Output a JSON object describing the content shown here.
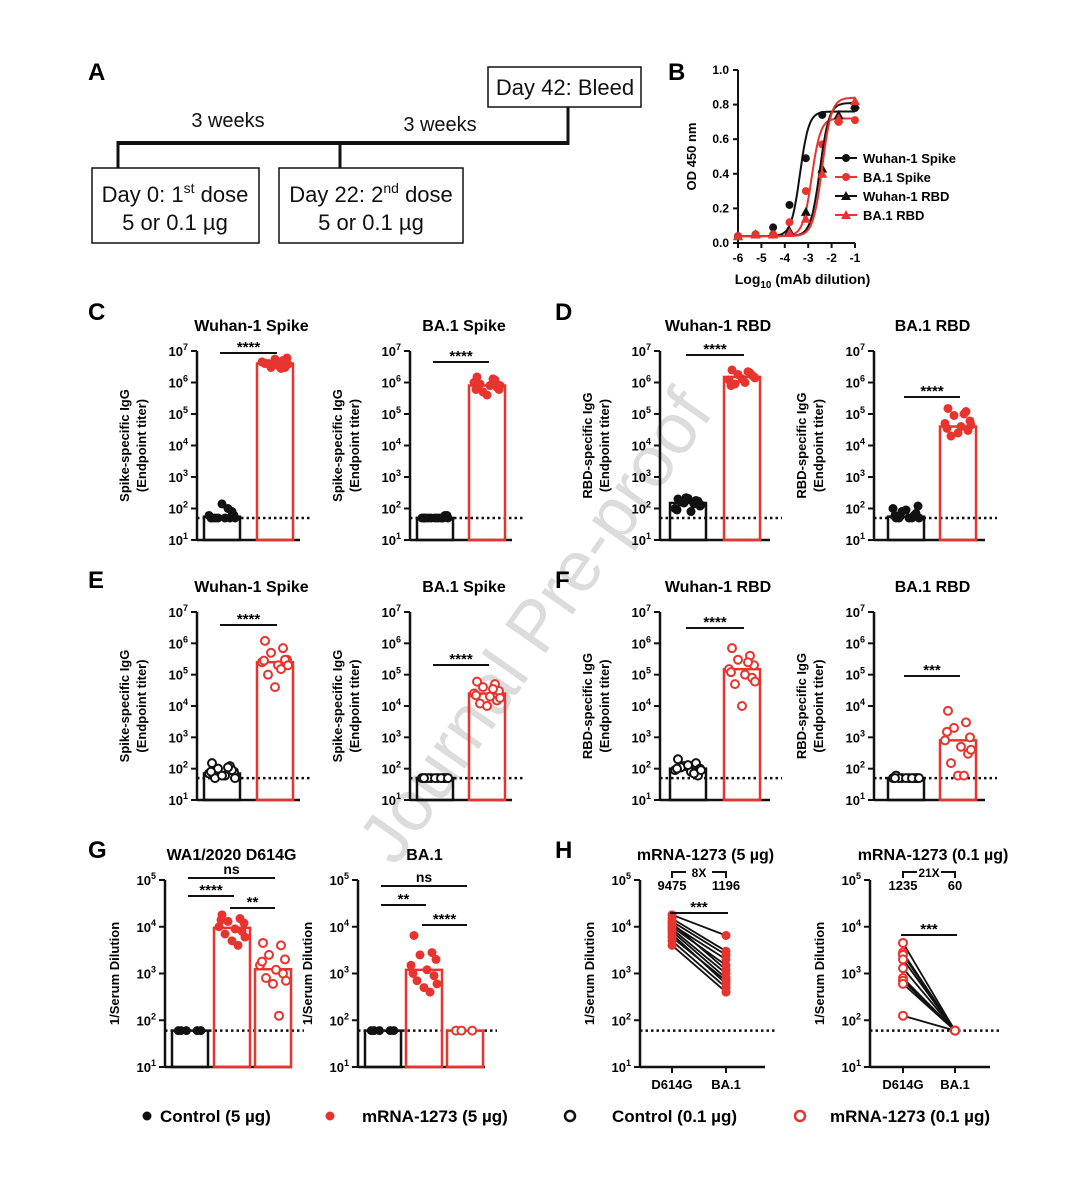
{
  "colors": {
    "black": "#111111",
    "red": "#e8342e",
    "watermark": "#d9d9d9"
  },
  "watermark": "Journal Pre-proof",
  "panel_labels": [
    "A",
    "B",
    "C",
    "D",
    "E",
    "F",
    "G",
    "H"
  ],
  "panel_a": {
    "bleed": "Day 42: Bleed",
    "interval_1": "3 weeks",
    "interval_2": "3 weeks",
    "dose1_line1": "Day 0: 1",
    "dose1_sup": "st",
    "dose1_line1_end": " dose",
    "dose1_line2": "5 or 0.1 µg",
    "dose2_line1": "Day 22: 2",
    "dose2_sup": "nd",
    "dose2_line1_end": " dose",
    "dose2_line2": "5 or 0.1 µg"
  },
  "legend": [
    {
      "label": "Control (5 µg)",
      "symbol": "filled",
      "color": "#111111"
    },
    {
      "label": "mRNA-1273 (5 µg)",
      "symbol": "filled",
      "color": "#e8342e"
    },
    {
      "label": "Control (0.1 µg)",
      "symbol": "open",
      "color": "#111111"
    },
    {
      "label": "mRNA-1273 (0.1 µg)",
      "symbol": "open",
      "color": "#e8342e"
    }
  ],
  "chart_data": [
    {
      "panel": "B",
      "type": "line",
      "xlabel": "Log10 (mAb dilution)",
      "ylabel": "OD 450 nm",
      "xlim": [
        -6,
        -1
      ],
      "ylim": [
        0,
        1.0
      ],
      "xticks": [
        -6,
        -5,
        -4,
        -3,
        -2,
        -1
      ],
      "yticks": [
        0.0,
        0.2,
        0.4,
        0.6,
        0.8,
        1.0
      ],
      "x": [
        -6,
        -5.25,
        -4.5,
        -3.8,
        -3.1,
        -2.4,
        -1.7,
        -1
      ],
      "series": [
        {
          "name": "Wuhan-1 Spike",
          "color": "#111111",
          "marker": "circle",
          "values": [
            0.04,
            0.05,
            0.09,
            0.22,
            0.49,
            0.74,
            0.72,
            0.78
          ],
          "fit": {
            "bottom": 0.04,
            "top": 0.76,
            "ec50": -3.35,
            "hill": 2.3
          }
        },
        {
          "name": "BA.1 Spike",
          "color": "#e8342e",
          "marker": "circle",
          "values": [
            0.04,
            0.05,
            0.05,
            0.12,
            0.3,
            0.57,
            0.7,
            0.71
          ],
          "fit": {
            "bottom": 0.04,
            "top": 0.72,
            "ec50": -2.85,
            "hill": 2.3
          }
        },
        {
          "name": "Wuhan-1 RBD",
          "color": "#111111",
          "marker": "triangle",
          "values": [
            0.04,
            0.05,
            0.05,
            0.07,
            0.18,
            0.43,
            0.74,
            0.8
          ],
          "fit": {
            "bottom": 0.04,
            "top": 0.81,
            "ec50": -2.5,
            "hill": 2.2
          }
        },
        {
          "name": "BA.1 RBD",
          "color": "#e8342e",
          "marker": "triangle",
          "values": [
            0.04,
            0.05,
            0.05,
            0.06,
            0.14,
            0.4,
            0.72,
            0.82
          ],
          "fit": {
            "bottom": 0.04,
            "top": 0.84,
            "ec50": -2.4,
            "hill": 2.2
          }
        }
      ],
      "legend_position": "right"
    },
    {
      "panel": "C",
      "type": "bar",
      "title": "Wuhan-1 Spike",
      "ylabel": [
        "Spike-specific IgG",
        "(Endpoint titer)"
      ],
      "ylim": [
        10,
        10000000
      ],
      "limit": 50,
      "groups": [
        {
          "name": "Control (5 µg)",
          "style": "black",
          "bar": 55,
          "points": [
            50,
            50,
            50,
            60,
            60,
            50,
            80,
            50,
            140,
            100,
            50,
            50
          ]
        },
        {
          "name": "mRNA-1273 (5 µg)",
          "style": "red",
          "bar": 4000000,
          "points": [
            4000000,
            5000000,
            3000000,
            6000000,
            4500000,
            3500000,
            3000000,
            4000000,
            5500000,
            2800000,
            4200000,
            3800000
          ]
        }
      ],
      "sig": [
        {
          "from": 0,
          "to": 1,
          "label": "****"
        }
      ]
    },
    {
      "panel": "C",
      "type": "bar",
      "title": "BA.1 Spike",
      "ylabel": [
        "Spike-specific IgG",
        "(Endpoint titer)"
      ],
      "ylim": [
        10,
        10000000
      ],
      "limit": 50,
      "groups": [
        {
          "name": "Control (5 µg)",
          "style": "black",
          "bar": 50,
          "points": [
            50,
            50,
            50,
            60,
            50,
            50,
            60,
            50,
            50,
            50,
            50,
            50
          ]
        },
        {
          "name": "mRNA-1273 (5 µg)",
          "style": "red",
          "bar": 800000,
          "points": [
            1500000,
            1200000,
            500000,
            600000,
            1000000,
            800000,
            700000,
            900000,
            400000,
            1300000,
            600000,
            800000
          ]
        }
      ],
      "sig": [
        {
          "from": 0,
          "to": 1,
          "label": "****"
        }
      ]
    },
    {
      "panel": "D",
      "type": "bar",
      "title": "Wuhan-1 RBD",
      "ylabel": [
        "RBD-specific IgG",
        "(Endpoint titer)"
      ],
      "ylim": [
        10,
        10000000
      ],
      "limit": 50,
      "groups": [
        {
          "name": "Control (5 µg)",
          "style": "black",
          "bar": 150,
          "points": [
            200,
            180,
            150,
            120,
            100,
            80,
            170,
            160,
            210,
            140,
            90,
            130,
            220
          ]
        },
        {
          "name": "mRNA-1273 (5 µg)",
          "style": "red",
          "bar": 1500000,
          "points": [
            2500000,
            2000000,
            1800000,
            1500000,
            1200000,
            1000000,
            1700000,
            900000,
            1300000,
            2200000,
            800000,
            1400000
          ]
        }
      ],
      "sig": [
        {
          "from": 0,
          "to": 1,
          "label": "****"
        }
      ]
    },
    {
      "panel": "D",
      "type": "bar",
      "title": "BA.1 RBD",
      "ylabel": [
        "RBD-specific IgG",
        "(Endpoint titer)"
      ],
      "ylim": [
        10,
        10000000
      ],
      "limit": 50,
      "groups": [
        {
          "name": "Control (5 µg)",
          "style": "black",
          "bar": 55,
          "points": [
            50,
            60,
            80,
            120,
            100,
            50,
            70,
            50,
            90,
            50,
            60,
            50
          ]
        },
        {
          "name": "mRNA-1273 (5 µg)",
          "style": "red",
          "bar": 40000,
          "points": [
            150000,
            120000,
            90000,
            60000,
            50000,
            40000,
            30000,
            20000,
            25000,
            100000,
            35000,
            45000
          ]
        }
      ],
      "sig": [
        {
          "from": 0,
          "to": 1,
          "label": "****"
        }
      ]
    },
    {
      "panel": "E",
      "type": "bar",
      "title": "Wuhan-1 Spike",
      "ylabel": [
        "Spike-specific IgG",
        "(Endpoint titer)"
      ],
      "ylim": [
        10,
        10000000
      ],
      "limit": 50,
      "groups": [
        {
          "name": "Control (0.1 µg)",
          "style": "black-open",
          "bar": 70,
          "points": [
            150,
            120,
            100,
            80,
            70,
            60,
            90,
            50,
            60,
            110,
            80,
            50
          ]
        },
        {
          "name": "mRNA-1273 (0.1 µg)",
          "style": "red-open",
          "bar": 250000,
          "points": [
            1200000,
            700000,
            500000,
            300000,
            250000,
            200000,
            300000,
            100000,
            40000,
            150000,
            280000,
            200000
          ]
        }
      ],
      "sig": [
        {
          "from": 0,
          "to": 1,
          "label": "****"
        }
      ]
    },
    {
      "panel": "E",
      "type": "bar",
      "title": "BA.1 Spike",
      "ylabel": [
        "Spike-specific IgG",
        "(Endpoint titer)"
      ],
      "ylim": [
        10,
        10000000
      ],
      "limit": 50,
      "groups": [
        {
          "name": "Control (0.1 µg)",
          "style": "black-open",
          "bar": 50,
          "points": [
            50,
            50,
            50,
            50,
            50,
            50,
            50,
            50,
            50,
            50,
            50,
            50
          ]
        },
        {
          "name": "mRNA-1273 (0.1 µg)",
          "style": "red-open",
          "bar": 25000,
          "points": [
            60000,
            50000,
            40000,
            30000,
            25000,
            20000,
            15000,
            12000,
            10000,
            35000,
            22000,
            18000
          ]
        }
      ],
      "sig": [
        {
          "from": 0,
          "to": 1,
          "label": "****"
        }
      ]
    },
    {
      "panel": "F",
      "type": "bar",
      "title": "Wuhan-1 RBD",
      "ylabel": [
        "RBD-specific IgG",
        "(Endpoint titer)"
      ],
      "ylim": [
        10,
        10000000
      ],
      "limit": 50,
      "groups": [
        {
          "name": "Control (0.1 µg)",
          "style": "black-open",
          "bar": 100,
          "points": [
            200,
            150,
            120,
            100,
            90,
            80,
            60,
            110,
            130,
            70,
            100,
            90
          ]
        },
        {
          "name": "mRNA-1273 (0.1 µg)",
          "style": "red-open",
          "bar": 150000,
          "points": [
            700000,
            400000,
            300000,
            200000,
            150000,
            100000,
            80000,
            50000,
            10000,
            250000,
            120000,
            60000
          ]
        }
      ],
      "sig": [
        {
          "from": 0,
          "to": 1,
          "label": "****"
        }
      ]
    },
    {
      "panel": "F",
      "type": "bar",
      "title": "BA.1 RBD",
      "ylabel": [
        "RBD-specific IgG",
        "(Endpoint titer)"
      ],
      "ylim": [
        10,
        10000000
      ],
      "limit": 50,
      "groups": [
        {
          "name": "Control (0.1 µg)",
          "style": "black-open",
          "bar": 50,
          "points": [
            60,
            50,
            50,
            50,
            50,
            50,
            50,
            50,
            50,
            50,
            50,
            50
          ]
        },
        {
          "name": "mRNA-1273 (0.1 µg)",
          "style": "red-open",
          "bar": 800,
          "points": [
            7000,
            3000,
            2000,
            1000,
            800,
            500,
            300,
            150,
            60,
            60,
            1500,
            400
          ]
        }
      ],
      "sig": [
        {
          "from": 0,
          "to": 1,
          "label": "***"
        }
      ]
    },
    {
      "panel": "G",
      "type": "bar",
      "title": "WA1/2020 D614G",
      "ylabel": [
        "1/Serum Dilution"
      ],
      "ylim": [
        10,
        100000
      ],
      "limit": 60,
      "groups": [
        {
          "name": "Control (5 µg)",
          "style": "black",
          "bar": 60,
          "points": [
            60,
            60,
            60,
            60,
            60
          ]
        },
        {
          "name": "mRNA-1273 (5 µg)",
          "style": "red",
          "bar": 9475,
          "points": [
            18000,
            15000,
            13000,
            12000,
            10000,
            9000,
            8000,
            7000,
            5000,
            4000,
            14000,
            6000
          ]
        },
        {
          "name": "mRNA-1273 (0.1 µg)",
          "style": "red-open",
          "bar": 1235,
          "points": [
            4500,
            4000,
            2500,
            2000,
            1500,
            1200,
            1000,
            800,
            600,
            125,
            1800,
            700
          ]
        }
      ],
      "sig": [
        {
          "from": 0,
          "to": 2,
          "label": "ns"
        },
        {
          "from": 0,
          "to": 1,
          "label": "****"
        },
        {
          "from": 1,
          "to": 2,
          "label": "**"
        }
      ]
    },
    {
      "panel": "G",
      "type": "bar",
      "title": "BA.1",
      "ylabel": [
        "1/Serum Dilution"
      ],
      "ylim": [
        10,
        100000
      ],
      "limit": 60,
      "groups": [
        {
          "name": "Control (5 µg)",
          "style": "black",
          "bar": 60,
          "points": [
            60,
            60,
            60,
            60,
            60
          ]
        },
        {
          "name": "mRNA-1273 (5 µg)",
          "style": "red",
          "bar": 1196,
          "points": [
            6500,
            2800,
            2500,
            2000,
            1500,
            1200,
            900,
            700,
            500,
            400,
            1000,
            600
          ]
        },
        {
          "name": "mRNA-1273 (0.1 µg)",
          "style": "red-open",
          "bar": 60,
          "points": [
            60,
            60,
            60
          ]
        }
      ],
      "sig": [
        {
          "from": 0,
          "to": 2,
          "label": "ns"
        },
        {
          "from": 0,
          "to": 1,
          "label": "**"
        },
        {
          "from": 1,
          "to": 2,
          "label": "****"
        }
      ]
    },
    {
      "panel": "H",
      "type": "paired",
      "title": "mRNA-1273 (5 µg)",
      "ylabel": [
        "1/Serum Dilution"
      ],
      "ylim": [
        10,
        100000
      ],
      "limit": 60,
      "categories": [
        "D614G",
        "BA.1"
      ],
      "style": "red",
      "fold": "8X",
      "gmt": [
        "9475",
        "1196"
      ],
      "pairs": [
        [
          18000,
          6500
        ],
        [
          15000,
          3000
        ],
        [
          13000,
          2500
        ],
        [
          11000,
          2000
        ],
        [
          10000,
          1500
        ],
        [
          9000,
          1000
        ],
        [
          8000,
          800
        ],
        [
          7000,
          600
        ],
        [
          5000,
          500
        ],
        [
          4000,
          400
        ],
        [
          12000,
          1200
        ],
        [
          6000,
          700
        ]
      ],
      "sig": [
        {
          "from": 0,
          "to": 1,
          "label": "***"
        }
      ]
    },
    {
      "panel": "H",
      "type": "paired",
      "title": "mRNA-1273 (0.1 µg)",
      "ylabel": [
        "1/Serum Dilution"
      ],
      "ylim": [
        10,
        100000
      ],
      "limit": 60,
      "categories": [
        "D614G",
        "BA.1"
      ],
      "style": "red-open",
      "fold": "21X",
      "gmt": [
        "1235",
        "60"
      ],
      "pairs": [
        [
          4500,
          60
        ],
        [
          2800,
          60
        ],
        [
          2500,
          60
        ],
        [
          2000,
          60
        ],
        [
          1300,
          60
        ],
        [
          800,
          60
        ],
        [
          700,
          60
        ],
        [
          600,
          60
        ],
        [
          125,
          60
        ]
      ],
      "sig": [
        {
          "from": 0,
          "to": 1,
          "label": "***"
        }
      ]
    }
  ]
}
